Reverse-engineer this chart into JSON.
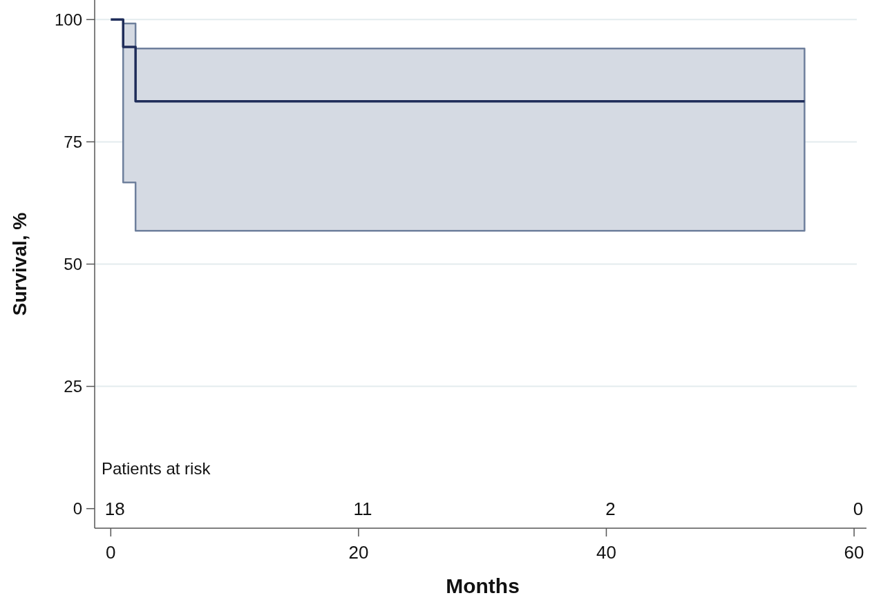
{
  "chart_data": {
    "type": "step",
    "xlabel": "Months",
    "ylabel": "Survival, %",
    "xlim": [
      -1.3,
      61
    ],
    "ylim": [
      -4,
      104
    ],
    "xticks": [
      0,
      20,
      40,
      60
    ],
    "yticks": [
      0,
      25,
      50,
      75,
      100
    ],
    "grid": "y",
    "series": [
      {
        "color": "#1f2d5a",
        "x": [
          0,
          1,
          2,
          56
        ],
        "values": [
          100,
          94.4,
          83.3,
          83.3
        ],
        "lower": [
          null,
          66.7,
          56.8,
          56.8
        ],
        "upper": [
          null,
          99.2,
          94.1,
          94.1
        ]
      }
    ],
    "annotations": [
      "Patients at risk",
      "18",
      "11",
      "2",
      "0"
    ]
  }
}
